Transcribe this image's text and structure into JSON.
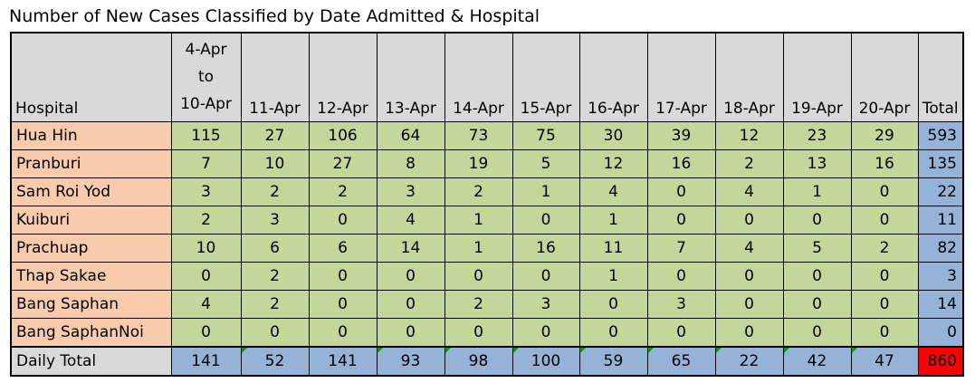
{
  "title": "Number of New Cases Classified by Date Admitted & Hospital",
  "header": {
    "hospital": "Hospital",
    "first_period": [
      "4-Apr",
      "to",
      "10-Apr"
    ],
    "dates": [
      "11-Apr",
      "12-Apr",
      "13-Apr",
      "14-Apr",
      "15-Apr",
      "16-Apr",
      "17-Apr",
      "18-Apr",
      "19-Apr",
      "20-Apr"
    ],
    "total": "Total"
  },
  "rows": [
    {
      "hospital": "Hua Hin",
      "values": [
        "115",
        "27",
        "106",
        "64",
        "73",
        "75",
        "30",
        "39",
        "12",
        "23",
        "29"
      ],
      "total": "593"
    },
    {
      "hospital": "Pranburi",
      "values": [
        "7",
        "10",
        "27",
        "8",
        "19",
        "5",
        "12",
        "16",
        "2",
        "13",
        "16"
      ],
      "total": "135"
    },
    {
      "hospital": "Sam Roi Yod",
      "values": [
        "3",
        "2",
        "2",
        "3",
        "2",
        "1",
        "4",
        "0",
        "4",
        "1",
        "0"
      ],
      "total": "22"
    },
    {
      "hospital": "Kuiburi",
      "values": [
        "2",
        "3",
        "0",
        "4",
        "1",
        "0",
        "1",
        "0",
        "0",
        "0",
        "0"
      ],
      "total": "11"
    },
    {
      "hospital": "Prachuap",
      "values": [
        "10",
        "6",
        "6",
        "14",
        "1",
        "16",
        "11",
        "7",
        "4",
        "5",
        "2"
      ],
      "total": "82"
    },
    {
      "hospital": "Thap Sakae",
      "values": [
        "0",
        "2",
        "0",
        "0",
        "0",
        "0",
        "1",
        "0",
        "0",
        "0",
        "0"
      ],
      "total": "3"
    },
    {
      "hospital": "Bang Saphan",
      "values": [
        "4",
        "2",
        "0",
        "0",
        "2",
        "3",
        "0",
        "3",
        "0",
        "0",
        "0"
      ],
      "total": "14"
    },
    {
      "hospital": "Bang SaphanNoi",
      "values": [
        "0",
        "0",
        "0",
        "0",
        "0",
        "0",
        "0",
        "0",
        "0",
        "0",
        "0"
      ],
      "total": "0"
    }
  ],
  "daily_total": {
    "label": "Daily Total",
    "values": [
      "141",
      "52",
      "141",
      "93",
      "98",
      "100",
      "59",
      "65",
      "22",
      "42",
      "47"
    ],
    "total": "860"
  },
  "colors": {
    "hospital_cell": "#f8cbad",
    "value_cell": "#c4d79b",
    "total_cell": "#95b3d7",
    "header_cell": "#d9d9d9",
    "grand_total": "#ff0000"
  }
}
